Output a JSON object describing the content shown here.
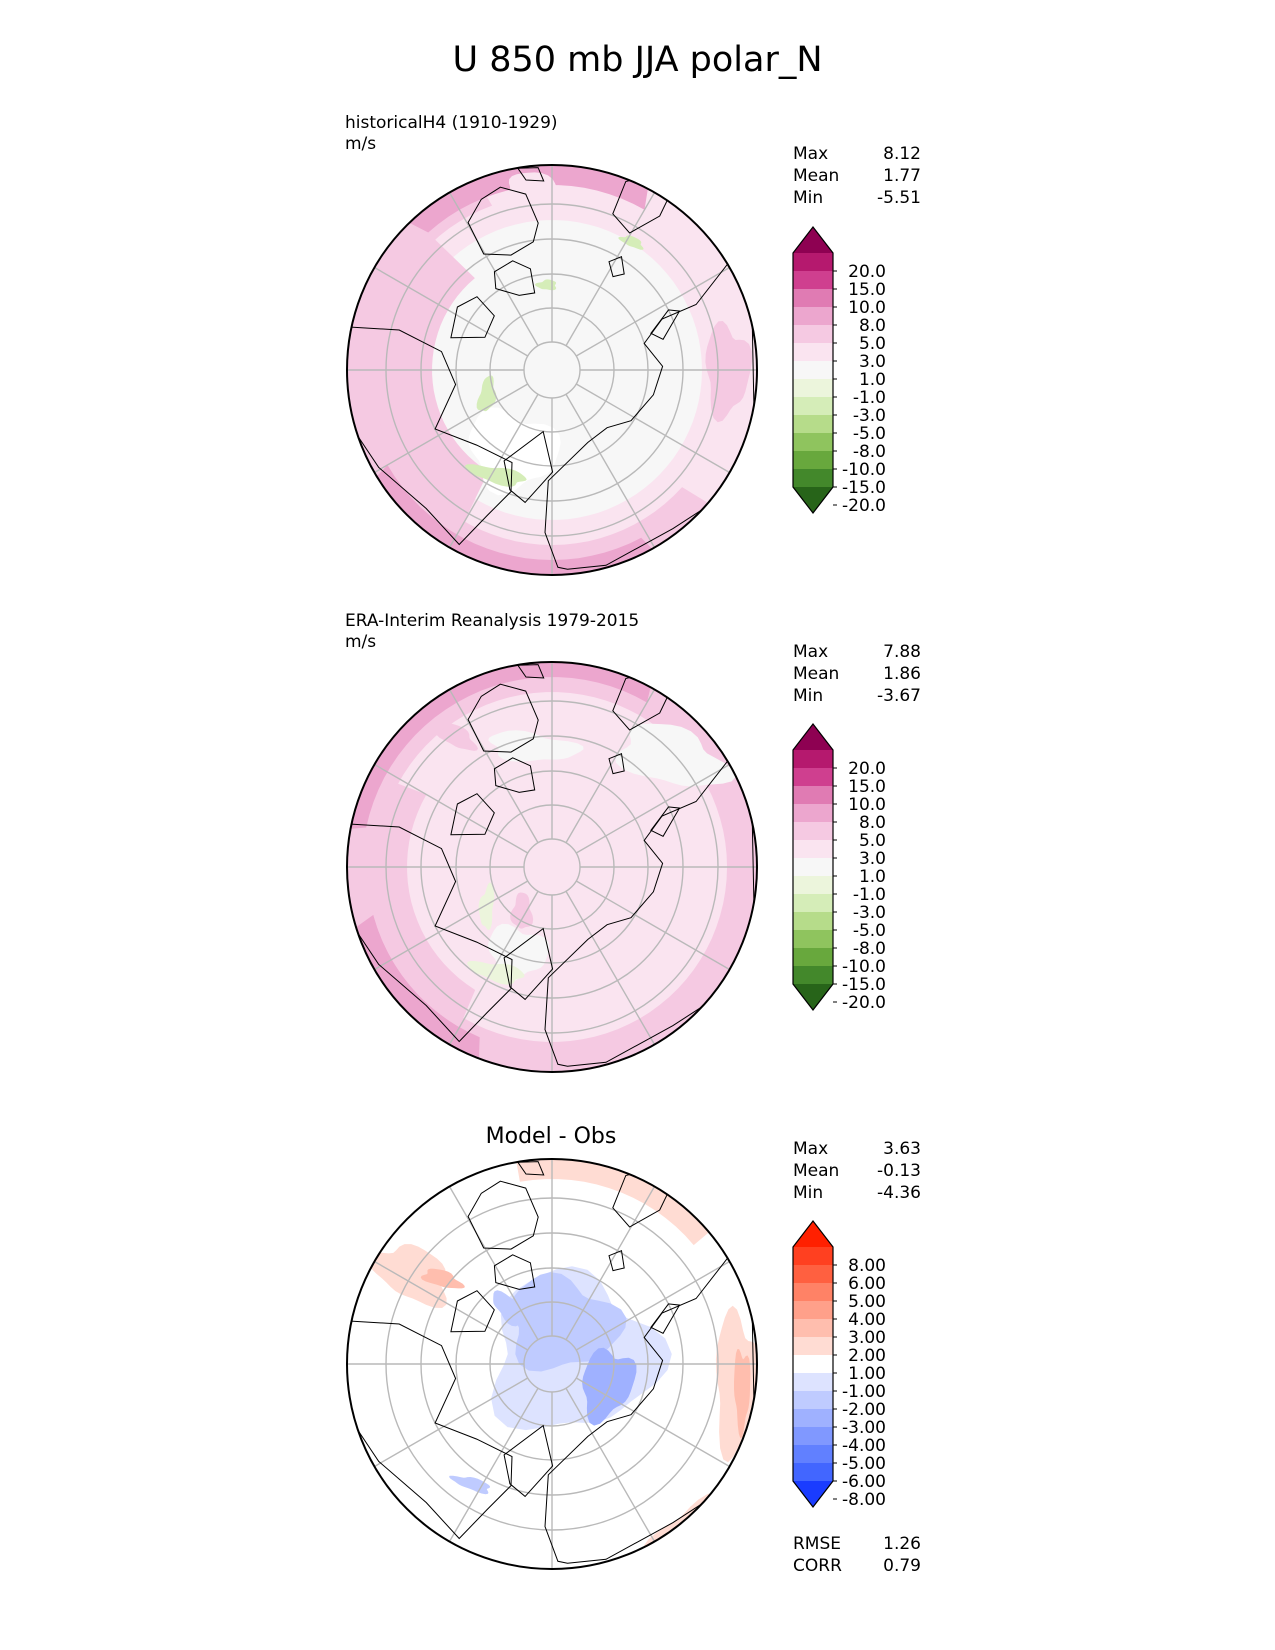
{
  "title": "U 850 mb JJA polar_N",
  "panels": [
    {
      "id": "model",
      "label": "historicalH4 (1910-1929)",
      "units": "m/s",
      "stats": {
        "max_label": "Max",
        "max": "8.12",
        "mean_label": "Mean",
        "mean": "1.77",
        "min_label": "Min",
        "min": "-5.51"
      },
      "colorbar": {
        "labels": [
          "20.0",
          "15.0",
          "10.0",
          "8.0",
          "5.0",
          "3.0",
          "1.0",
          "-1.0",
          "-3.0",
          "-5.0",
          "-8.0",
          "-10.0",
          "-15.0",
          "-20.0"
        ],
        "colors": [
          "#8e0152",
          "#b5196e",
          "#cf3f8f",
          "#e07bb3",
          "#eca6ce",
          "#f5c9e2",
          "#fae4f0",
          "#f7f7f7",
          "#ecf5dc",
          "#d5edb8",
          "#b6dc8a",
          "#8fc45e",
          "#68a83d",
          "#43882b",
          "#276419"
        ]
      }
    },
    {
      "id": "obs",
      "label": "ERA-Interim Reanalysis 1979-2015",
      "units": "m/s",
      "stats": {
        "max_label": "Max",
        "max": "7.88",
        "mean_label": "Mean",
        "mean": "1.86",
        "min_label": "Min",
        "min": "-3.67"
      },
      "colorbar": {
        "labels": [
          "20.0",
          "15.0",
          "10.0",
          "8.0",
          "5.0",
          "3.0",
          "1.0",
          "-1.0",
          "-3.0",
          "-5.0",
          "-8.0",
          "-10.0",
          "-15.0",
          "-20.0"
        ],
        "colors": [
          "#8e0152",
          "#b5196e",
          "#cf3f8f",
          "#e07bb3",
          "#eca6ce",
          "#f5c9e2",
          "#fae4f0",
          "#f7f7f7",
          "#ecf5dc",
          "#d5edb8",
          "#b6dc8a",
          "#8fc45e",
          "#68a83d",
          "#43882b",
          "#276419"
        ]
      }
    },
    {
      "id": "diff",
      "title": "Model - Obs",
      "stats": {
        "max_label": "Max",
        "max": "3.63",
        "mean_label": "Mean",
        "mean": "-0.13",
        "min_label": "Min",
        "min": "-4.36"
      },
      "metrics": {
        "rmse_label": "RMSE",
        "rmse": "1.26",
        "corr_label": "CORR",
        "corr": "0.79"
      },
      "colorbar": {
        "labels": [
          "8.00",
          "6.00",
          "5.00",
          "4.00",
          "3.00",
          "2.00",
          "1.00",
          "-1.00",
          "-2.00",
          "-3.00",
          "-4.00",
          "-5.00",
          "-6.00",
          "-8.00"
        ],
        "colors": [
          "#ff2000",
          "#ff4020",
          "#ff6040",
          "#ff8266",
          "#ffa08a",
          "#ffbeae",
          "#ffdcd3",
          "#ffffff",
          "#dde3ff",
          "#bfcbff",
          "#9fb1ff",
          "#8098ff",
          "#6180ff",
          "#4266ff",
          "#1a3cff"
        ]
      }
    }
  ],
  "chart_data": [
    {
      "type": "heatmap",
      "projection": "polar stereographic north",
      "title": "historicalH4 (1910-1929)",
      "units": "m/s",
      "max": 8.12,
      "mean": 1.77,
      "min": -5.51
    },
    {
      "type": "heatmap",
      "projection": "polar stereographic north",
      "title": "ERA-Interim Reanalysis 1979-2015",
      "units": "m/s",
      "max": 7.88,
      "mean": 1.86,
      "min": -3.67
    },
    {
      "type": "heatmap",
      "projection": "polar stereographic north",
      "title": "Model - Obs",
      "max": 3.63,
      "mean": -0.13,
      "min": -4.36,
      "rmse": 1.26,
      "corr": 0.79
    }
  ]
}
